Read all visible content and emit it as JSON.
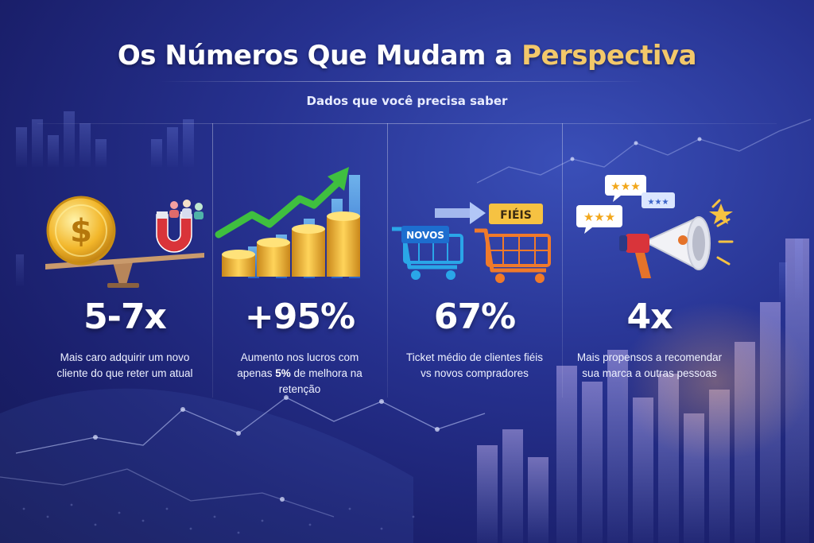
{
  "header": {
    "title_main": "Os Números Que Mudam a",
    "title_accent": "Perspectiva",
    "subtitle": "Dados que você precisa saber"
  },
  "colors": {
    "accent_gold": "#f3c86a",
    "background_deep": "#1a1f6b",
    "background_mid": "#26318f",
    "bar_green": "#3fbf3f",
    "cart_blue": "#2aa6e8",
    "cart_orange": "#f07a2a"
  },
  "stats": [
    {
      "value": "5-7x",
      "desc_line1": "Mais caro adquirir um novo",
      "desc_line2": "cliente do que reter um atual",
      "icon": "coin-balance-magnet-icon"
    },
    {
      "value": "+95%",
      "desc_line1": "Aumento nos lucros com",
      "desc_line2_pre": "apenas ",
      "desc_line2_bold": "5%",
      "desc_line2_post": " de melhora na retenção",
      "icon": "growth-coins-chart-icon"
    },
    {
      "value": "67%",
      "desc_line1": "Ticket médio de clientes fiéis",
      "desc_line2": "vs novos compradores",
      "icon": "shopping-carts-icon",
      "cart_new_label": "NOVOS",
      "cart_loyal_label": "FIÉIS"
    },
    {
      "value": "4x",
      "desc_line1": "Mais propensos a recomendar",
      "desc_line2": "sua marca a outras pessoas",
      "icon": "megaphone-reviews-icon",
      "review_stars": "★★★"
    }
  ]
}
